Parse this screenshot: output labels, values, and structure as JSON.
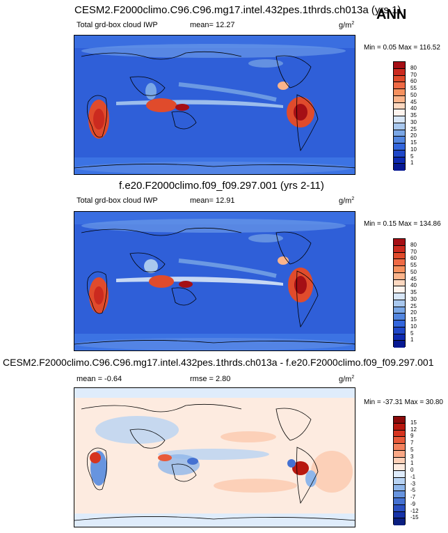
{
  "ann_label": "ANN",
  "chart_data": [
    {
      "type": "heatmap",
      "title": "CESM2.F2000climo.C96.C96.mg17.intel.432pes.1thrds.ch013a (yrs 1)",
      "left_label": "Total grd-box cloud IWP",
      "mean_text": "mean=  12.27",
      "units": "g/m",
      "units_exp": "2",
      "minmax_text": "Min =   0.05 Max = 116.52",
      "min": 0.05,
      "max": 116.52,
      "mean": 12.27,
      "colorbar_levels": [
        "80",
        "70",
        "60",
        "55",
        "50",
        "45",
        "40",
        "35",
        "30",
        "25",
        "20",
        "15",
        "10",
        "5",
        "1"
      ],
      "colorbar_colors": [
        "#a50f15",
        "#cb2a1f",
        "#e04b2c",
        "#ef6a45",
        "#f6915f",
        "#fbb48b",
        "#fdd8c0",
        "#fff4ee",
        "#d8e6f6",
        "#a9c8ee",
        "#7aa7e6",
        "#5386e0",
        "#3366dd",
        "#1f47c8",
        "#0e2ab0",
        "#071993"
      ]
    },
    {
      "type": "heatmap",
      "title": "f.e20.F2000climo.f09_f09.297.001 (yrs 2-11)",
      "left_label": "Total grd-box cloud IWP",
      "mean_text": "mean=  12.91",
      "units": "g/m",
      "units_exp": "2",
      "minmax_text": "Min =   0.15 Max = 134.86",
      "min": 0.15,
      "max": 134.86,
      "mean": 12.91,
      "colorbar_levels": [
        "80",
        "70",
        "60",
        "55",
        "50",
        "45",
        "40",
        "35",
        "30",
        "25",
        "20",
        "15",
        "10",
        "5",
        "1"
      ],
      "colorbar_colors": [
        "#a50f15",
        "#cb2a1f",
        "#e04b2c",
        "#ef6a45",
        "#f6915f",
        "#fbb48b",
        "#fdd8c0",
        "#fff4ee",
        "#d8e6f6",
        "#a9c8ee",
        "#7aa7e6",
        "#5386e0",
        "#3366dd",
        "#1f47c8",
        "#0e2ab0",
        "#071993"
      ]
    },
    {
      "type": "heatmap",
      "title": "CESM2.F2000climo.C96.C96.mg17.intel.432pes.1thrds.ch013a - f.e20.F2000climo.f09_f09.297.001",
      "mean_text": "mean =  -0.64",
      "rmse_text": "rmse =   2.80",
      "units": "g/m",
      "units_exp": "2",
      "minmax_text": "Min = -37.31 Max =  30.80",
      "min": -37.31,
      "max": 30.8,
      "mean": -0.64,
      "rmse": 2.8,
      "colorbar_levels": [
        "15",
        "12",
        "9",
        "7",
        "5",
        "3",
        "1",
        "0",
        "-1",
        "-3",
        "-5",
        "-7",
        "-9",
        "-12",
        "-15"
      ],
      "colorbar_colors": [
        "#8b0a0a",
        "#b8180f",
        "#d6341f",
        "#e85a3a",
        "#f3825e",
        "#f9a886",
        "#fcd0b8",
        "#fdebe0",
        "#dfecfb",
        "#b8d3f3",
        "#8fb6ea",
        "#6794df",
        "#4571d1",
        "#2a4fc0",
        "#1733a8",
        "#0b1f80"
      ]
    }
  ]
}
